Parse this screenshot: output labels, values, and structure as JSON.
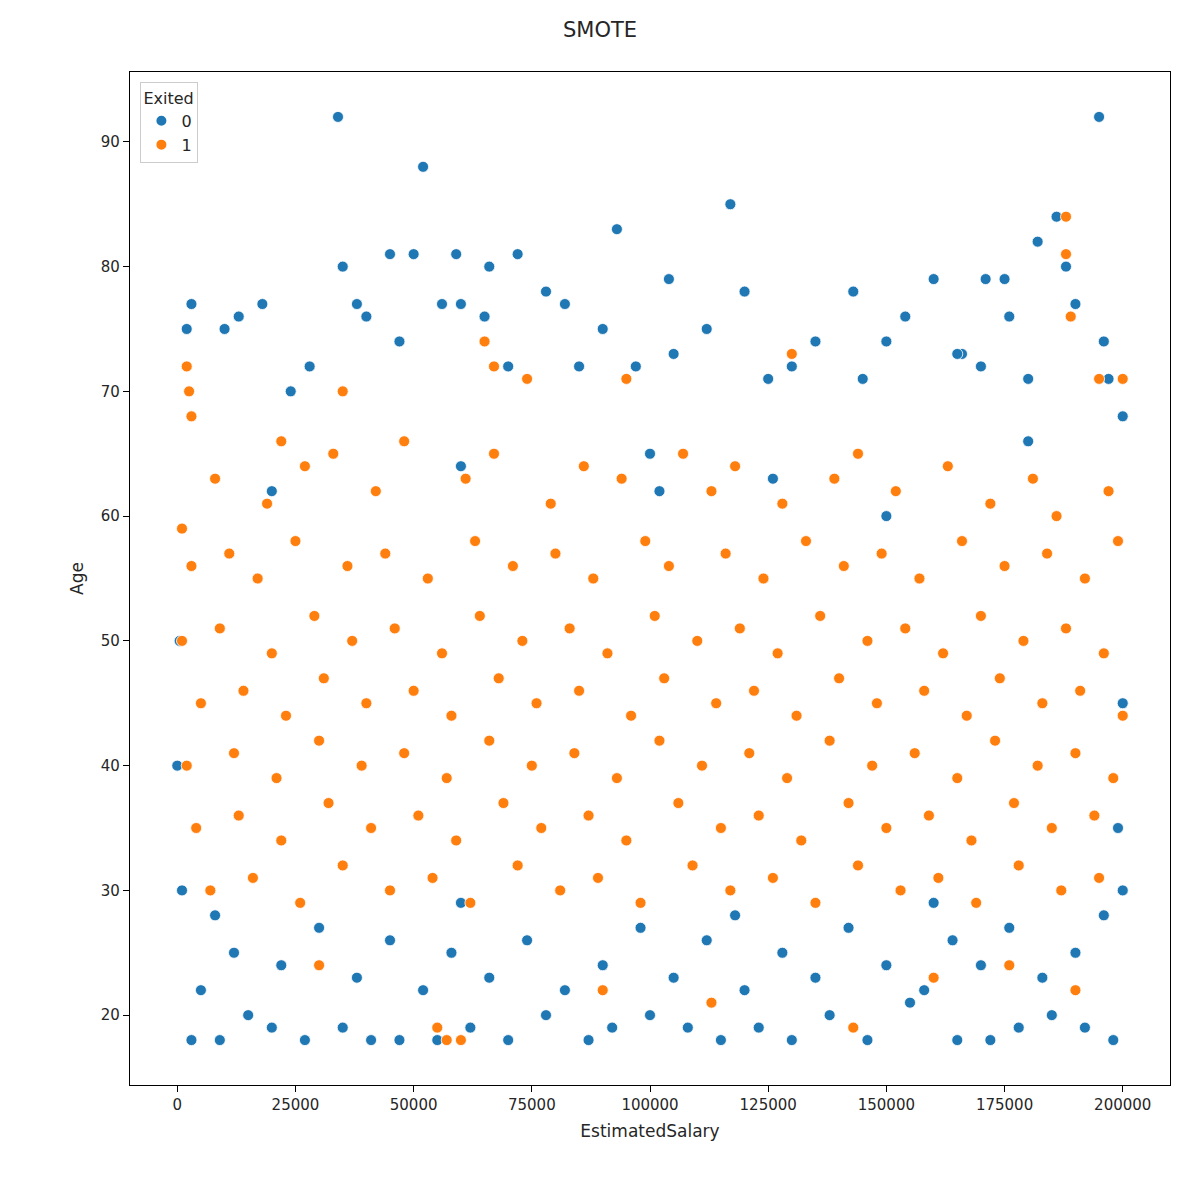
{
  "chart_data": {
    "type": "scatter",
    "title": "SMOTE",
    "x_label": "EstimatedSalary",
    "y_label": "Age",
    "legend_title": "Exited",
    "legend": "upper left",
    "grid": false,
    "marker": "circle",
    "xlim": [
      -10000,
      210000
    ],
    "ylim": [
      14.4,
      95.6
    ],
    "xticks": [
      0,
      25000,
      50000,
      75000,
      100000,
      125000,
      150000,
      175000,
      200000
    ],
    "yticks": [
      20,
      30,
      40,
      50,
      60,
      70,
      80,
      90
    ],
    "series": [
      {
        "name": "0",
        "color": "#1f77b4",
        "x": [
          34000,
          52000,
          195000,
          117000,
          93000,
          182000,
          186000,
          35000,
          45000,
          50000,
          59000,
          66000,
          72000,
          104000,
          171000,
          175000,
          160000,
          188000,
          2000,
          3000,
          10000,
          13000,
          18000,
          38000,
          40000,
          56000,
          60000,
          65000,
          78000,
          82000,
          90000,
          112000,
          120000,
          143000,
          154000,
          166000,
          176000,
          196000,
          200000,
          197000,
          105000,
          130000,
          135000,
          150000,
          24000,
          28000,
          47000,
          70000,
          85000,
          97000,
          125000,
          145000,
          165000,
          170000,
          180000,
          190000,
          3000,
          9000,
          15000,
          20000,
          27000,
          35000,
          41000,
          47000,
          55000,
          62000,
          70000,
          78000,
          87000,
          92000,
          100000,
          108000,
          115000,
          123000,
          130000,
          138000,
          146000,
          155000,
          165000,
          172000,
          178000,
          185000,
          192000,
          198000,
          5000,
          12000,
          22000,
          30000,
          38000,
          45000,
          52000,
          58000,
          66000,
          74000,
          82000,
          90000,
          98000,
          105000,
          112000,
          120000,
          128000,
          135000,
          142000,
          150000,
          158000,
          164000,
          170000,
          176000,
          183000,
          190000,
          196000,
          200000,
          1000,
          0,
          500,
          200000,
          199000,
          8000,
          60000,
          118000,
          160000,
          100000,
          102000,
          60000,
          20000,
          180000,
          150000,
          126000
        ],
        "values": [
          92,
          88,
          92,
          85,
          83,
          82,
          84,
          80,
          81,
          81,
          81,
          80,
          81,
          79,
          79,
          79,
          79,
          80,
          75,
          77,
          75,
          76,
          77,
          77,
          76,
          77,
          77,
          76,
          78,
          77,
          75,
          75,
          78,
          78,
          76,
          73,
          76,
          74,
          68,
          71,
          73,
          72,
          74,
          74,
          70,
          72,
          74,
          72,
          72,
          72,
          71,
          71,
          73,
          72,
          71,
          77,
          18,
          18,
          20,
          19,
          18,
          19,
          18,
          18,
          18,
          19,
          18,
          20,
          18,
          19,
          20,
          19,
          18,
          19,
          18,
          20,
          18,
          21,
          18,
          18,
          19,
          20,
          19,
          18,
          22,
          25,
          24,
          27,
          23,
          26,
          22,
          25,
          23,
          26,
          22,
          24,
          27,
          23,
          26,
          22,
          25,
          23,
          27,
          24,
          22,
          26,
          24,
          27,
          23,
          25,
          28,
          30,
          30,
          40,
          50,
          45,
          35,
          28,
          29,
          28,
          29,
          65,
          62,
          64,
          62,
          66,
          60,
          63
        ]
      },
      {
        "name": "1",
        "color": "#ff7f0e",
        "x": [
          8000,
          19000,
          27000,
          33000,
          42000,
          48000,
          61000,
          67000,
          79000,
          86000,
          94000,
          107000,
          113000,
          118000,
          128000,
          139000,
          144000,
          152000,
          163000,
          172000,
          181000,
          186000,
          197000,
          3000,
          11000,
          17000,
          25000,
          36000,
          44000,
          53000,
          63000,
          71000,
          80000,
          88000,
          99000,
          104000,
          116000,
          124000,
          133000,
          141000,
          149000,
          157000,
          166000,
          175000,
          184000,
          192000,
          199000,
          1000,
          9000,
          20000,
          29000,
          37000,
          46000,
          56000,
          64000,
          73000,
          83000,
          91000,
          101000,
          110000,
          119000,
          127000,
          136000,
          146000,
          154000,
          162000,
          170000,
          179000,
          188000,
          196000,
          5000,
          14000,
          23000,
          31000,
          40000,
          50000,
          58000,
          68000,
          76000,
          85000,
          96000,
          103000,
          114000,
          122000,
          131000,
          140000,
          148000,
          158000,
          167000,
          174000,
          183000,
          191000,
          200000,
          2000,
          12000,
          21000,
          30000,
          39000,
          48000,
          57000,
          66000,
          75000,
          84000,
          93000,
          102000,
          111000,
          121000,
          129000,
          138000,
          147000,
          156000,
          165000,
          173000,
          182000,
          190000,
          198000,
          4000,
          13000,
          22000,
          32000,
          41000,
          51000,
          59000,
          69000,
          77000,
          87000,
          95000,
          106000,
          115000,
          123000,
          132000,
          142000,
          150000,
          159000,
          168000,
          177000,
          185000,
          194000,
          7000,
          16000,
          26000,
          35000,
          45000,
          54000,
          62000,
          72000,
          81000,
          89000,
          98000,
          109000,
          117000,
          126000,
          135000,
          144000,
          153000,
          161000,
          169000,
          178000,
          187000,
          195000,
          1000,
          2000,
          2500,
          3000,
          35000,
          65000,
          67000,
          74000,
          95000,
          130000,
          188000,
          188000,
          189000,
          195000,
          200000,
          22000,
          55000,
          57000,
          60000,
          143000,
          113000,
          190000,
          90000,
          160000,
          30000,
          176000
        ],
        "values": [
          63,
          61,
          64,
          65,
          62,
          66,
          63,
          65,
          61,
          64,
          63,
          65,
          62,
          64,
          61,
          63,
          65,
          62,
          64,
          61,
          63,
          60,
          62,
          56,
          57,
          55,
          58,
          56,
          57,
          55,
          58,
          56,
          57,
          55,
          58,
          56,
          57,
          55,
          58,
          56,
          57,
          55,
          58,
          56,
          57,
          55,
          58,
          50,
          51,
          49,
          52,
          50,
          51,
          49,
          52,
          50,
          51,
          49,
          52,
          50,
          51,
          49,
          52,
          50,
          51,
          49,
          52,
          50,
          51,
          49,
          45,
          46,
          44,
          47,
          45,
          46,
          44,
          47,
          45,
          46,
          44,
          47,
          45,
          46,
          44,
          47,
          45,
          46,
          44,
          47,
          45,
          46,
          44,
          40,
          41,
          39,
          42,
          40,
          41,
          39,
          42,
          40,
          41,
          39,
          42,
          40,
          41,
          39,
          42,
          40,
          41,
          39,
          42,
          40,
          41,
          39,
          35,
          36,
          34,
          37,
          35,
          36,
          34,
          37,
          35,
          36,
          34,
          37,
          35,
          36,
          34,
          37,
          35,
          36,
          34,
          37,
          35,
          36,
          30,
          31,
          29,
          32,
          30,
          31,
          29,
          32,
          30,
          31,
          29,
          32,
          30,
          31,
          29,
          32,
          30,
          31,
          29,
          32,
          30,
          31,
          59,
          72,
          70,
          68,
          70,
          74,
          72,
          71,
          71,
          73,
          84,
          81,
          76,
          71,
          71,
          66,
          19,
          18,
          18,
          19,
          21,
          22,
          22,
          23,
          24,
          24
        ]
      }
    ]
  }
}
